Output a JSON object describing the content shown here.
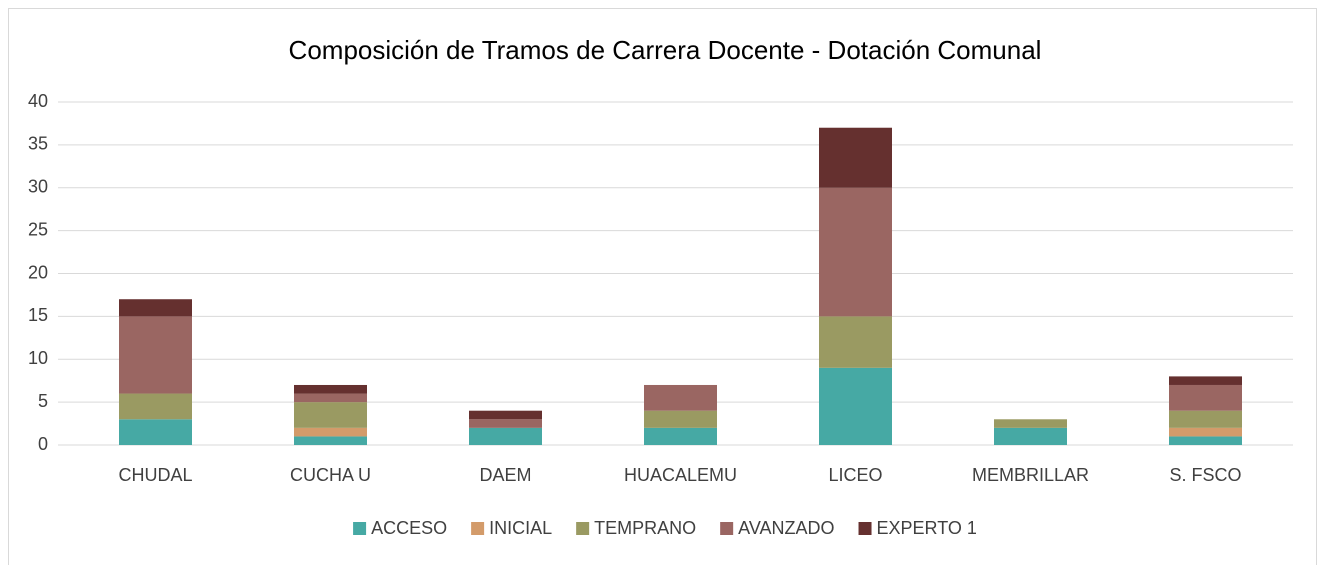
{
  "chart_data": {
    "type": "stacked_bar",
    "title": "Composición de Tramos de Carrera Docente - Dotación Comunal",
    "categories": [
      "CHUDAL",
      "CUCHA U",
      "DAEM",
      "HUACALEMU",
      "LICEO",
      "MEMBRILLAR",
      "S. FSCO"
    ],
    "series": [
      {
        "name": "ACCESO",
        "color": "#46a9a4",
        "values": [
          3,
          1,
          2,
          2,
          9,
          2,
          1
        ]
      },
      {
        "name": "INICIAL",
        "color": "#d39b6a",
        "values": [
          0,
          1,
          0,
          0,
          0,
          0,
          1
        ]
      },
      {
        "name": "TEMPRANO",
        "color": "#9a9a62",
        "values": [
          3,
          3,
          0,
          2,
          6,
          1,
          2
        ]
      },
      {
        "name": "AVANZADO",
        "color": "#9a6662",
        "values": [
          9,
          1,
          1,
          3,
          15,
          0,
          3
        ]
      },
      {
        "name": "EXPERTO 1",
        "color": "#65302f",
        "values": [
          2,
          1,
          1,
          0,
          7,
          0,
          1
        ]
      }
    ],
    "ylim": [
      0,
      40
    ],
    "yticks": [
      0,
      5,
      10,
      15,
      20,
      25,
      30,
      35,
      40
    ],
    "grid": true,
    "legend": "bottom"
  }
}
